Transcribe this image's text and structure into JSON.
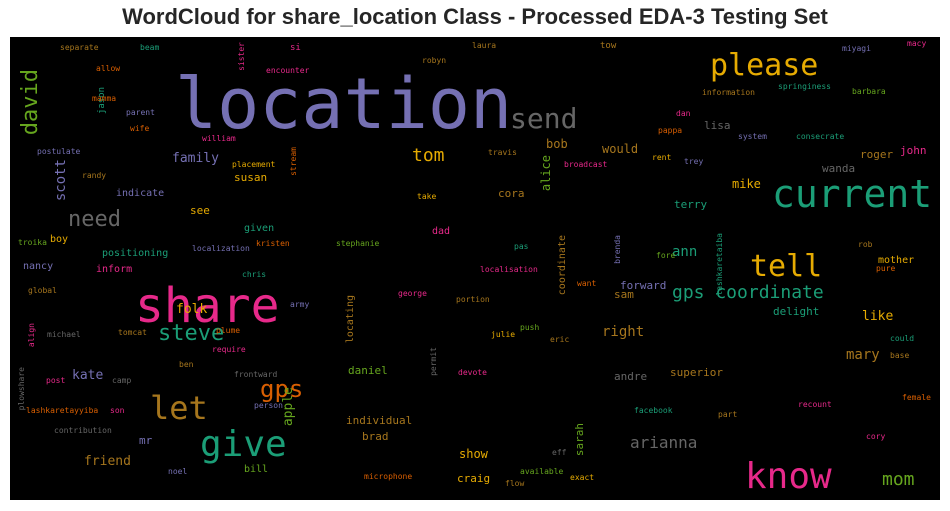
{
  "chart_data": {
    "type": "wordcloud",
    "title": "WordCloud for share_location Class - Processed EDA-3 Testing Set",
    "background": "#000000",
    "words": [
      {
        "text": "location",
        "color": "#7570b3",
        "v": 70
      },
      {
        "text": "share",
        "color": "#e7298a",
        "v": 48
      },
      {
        "text": "current",
        "color": "#1b9e77",
        "v": 38
      },
      {
        "text": "know",
        "color": "#e7298a",
        "v": 36
      },
      {
        "text": "please",
        "color": "#e6ab02",
        "v": 30
      },
      {
        "text": "give",
        "color": "#1b9e77",
        "v": 36
      },
      {
        "text": "let",
        "color": "#a6761d",
        "v": 32
      },
      {
        "text": "tell",
        "color": "#e6ab02",
        "v": 30
      },
      {
        "text": "send",
        "color": "#666666",
        "v": 28
      },
      {
        "text": "david",
        "color": "#66a61e",
        "v": 22,
        "vertical": true
      },
      {
        "text": "need",
        "color": "#666666",
        "v": 22
      },
      {
        "text": "steve",
        "color": "#1b9e77",
        "v": 22
      },
      {
        "text": "gps",
        "color": "#d95f02",
        "v": 24
      },
      {
        "text": "gps coordinate",
        "color": "#1b9e77",
        "v": 18
      },
      {
        "text": "tom",
        "color": "#e6ab02",
        "v": 18
      },
      {
        "text": "mom",
        "color": "#66a61e",
        "v": 18
      },
      {
        "text": "arianna",
        "color": "#666666",
        "v": 16
      },
      {
        "text": "mary",
        "color": "#a6761d",
        "v": 14
      },
      {
        "text": "family",
        "color": "#7570b3",
        "v": 13
      },
      {
        "text": "scott",
        "color": "#7570b3",
        "v": 14,
        "vertical": true
      },
      {
        "text": "apple",
        "color": "#66a61e",
        "v": 13,
        "vertical": true
      },
      {
        "text": "ann",
        "color": "#1b9e77",
        "v": 14
      },
      {
        "text": "right",
        "color": "#a6761d",
        "v": 14
      },
      {
        "text": "kate",
        "color": "#7570b3",
        "v": 13
      },
      {
        "text": "friend",
        "color": "#a6761d",
        "v": 13
      },
      {
        "text": "would",
        "color": "#a6761d",
        "v": 12
      },
      {
        "text": "bob",
        "color": "#a6761d",
        "v": 12
      },
      {
        "text": "folk",
        "color": "#e6ab02",
        "v": 13
      },
      {
        "text": "like",
        "color": "#e6ab02",
        "v": 13
      },
      {
        "text": "show",
        "color": "#e6ab02",
        "v": 12
      },
      {
        "text": "mike",
        "color": "#e6ab02",
        "v": 12
      },
      {
        "text": "alice",
        "color": "#66a61e",
        "v": 12,
        "vertical": true
      },
      {
        "text": "cora",
        "color": "#a6761d",
        "v": 11
      },
      {
        "text": "see",
        "color": "#e6ab02",
        "v": 11
      },
      {
        "text": "susan",
        "color": "#e6ab02",
        "v": 11
      },
      {
        "text": "superior",
        "color": "#a6761d",
        "v": 11
      },
      {
        "text": "forward",
        "color": "#7570b3",
        "v": 11
      },
      {
        "text": "sam",
        "color": "#a6761d",
        "v": 11
      },
      {
        "text": "delight",
        "color": "#1b9e77",
        "v": 11
      },
      {
        "text": "terry",
        "color": "#1b9e77",
        "v": 11
      },
      {
        "text": "lisa",
        "color": "#666666",
        "v": 11
      },
      {
        "text": "roger",
        "color": "#a6761d",
        "v": 11
      },
      {
        "text": "john",
        "color": "#e7298a",
        "v": 11
      },
      {
        "text": "wanda",
        "color": "#666666",
        "v": 11
      },
      {
        "text": "mother",
        "color": "#e6ab02",
        "v": 10
      },
      {
        "text": "sarah",
        "color": "#66a61e",
        "v": 11,
        "vertical": true
      },
      {
        "text": "craig",
        "color": "#e6ab02",
        "v": 11
      },
      {
        "text": "brad",
        "color": "#a6761d",
        "v": 11
      },
      {
        "text": "individual",
        "color": "#a6761d",
        "v": 11
      },
      {
        "text": "daniel",
        "color": "#66a61e",
        "v": 11
      },
      {
        "text": "andre",
        "color": "#666666",
        "v": 11
      },
      {
        "text": "bill",
        "color": "#66a61e",
        "v": 10
      },
      {
        "text": "mr",
        "color": "#7570b3",
        "v": 11
      },
      {
        "text": "boy",
        "color": "#e6ab02",
        "v": 10
      },
      {
        "text": "nancy",
        "color": "#7570b3",
        "v": 10
      },
      {
        "text": "inform",
        "color": "#e7298a",
        "v": 10
      },
      {
        "text": "positioning",
        "color": "#1b9e77",
        "v": 10
      },
      {
        "text": "indicate",
        "color": "#7570b3",
        "v": 10
      },
      {
        "text": "given",
        "color": "#1b9e77",
        "v": 10
      },
      {
        "text": "dad",
        "color": "#e7298a",
        "v": 10
      },
      {
        "text": "coordinate",
        "color": "#a6761d",
        "v": 10,
        "vertical": true
      },
      {
        "text": "locating",
        "color": "#a6761d",
        "v": 10,
        "vertical": true
      },
      {
        "text": "jason",
        "color": "#1b9e77",
        "v": 9,
        "vertical": true
      },
      {
        "text": "tow",
        "color": "#a6761d",
        "v": 9
      },
      {
        "text": "si",
        "color": "#e7298a",
        "v": 9
      },
      {
        "text": "sister",
        "color": "#e7298a",
        "v": 8,
        "vertical": true
      },
      {
        "text": "separate",
        "color": "#a6761d",
        "v": 8
      },
      {
        "text": "beam",
        "color": "#1b9e77",
        "v": 8
      },
      {
        "text": "allow",
        "color": "#d95f02",
        "v": 8
      },
      {
        "text": "laura",
        "color": "#a6761d",
        "v": 8
      },
      {
        "text": "robyn",
        "color": "#a6761d",
        "v": 8
      },
      {
        "text": "encounter",
        "color": "#e7298a",
        "v": 8
      },
      {
        "text": "miyagi",
        "color": "#7570b3",
        "v": 8
      },
      {
        "text": "macy",
        "color": "#e7298a",
        "v": 8
      },
      {
        "text": "mamma",
        "color": "#d95f02",
        "v": 8
      },
      {
        "text": "parent",
        "color": "#7570b3",
        "v": 8
      },
      {
        "text": "wife",
        "color": "#d95f02",
        "v": 8
      },
      {
        "text": "william",
        "color": "#e7298a",
        "v": 8
      },
      {
        "text": "postulate",
        "color": "#7570b3",
        "v": 8
      },
      {
        "text": "randy",
        "color": "#a6761d",
        "v": 8
      },
      {
        "text": "placement",
        "color": "#e6ab02",
        "v": 8
      },
      {
        "text": "stream",
        "color": "#d95f02",
        "v": 8,
        "vertical": true
      },
      {
        "text": "information",
        "color": "#a6761d",
        "v": 8
      },
      {
        "text": "springiness",
        "color": "#1b9e77",
        "v": 8
      },
      {
        "text": "barbara",
        "color": "#66a61e",
        "v": 8
      },
      {
        "text": "dan",
        "color": "#e7298a",
        "v": 8
      },
      {
        "text": "pappa",
        "color": "#d95f02",
        "v": 8
      },
      {
        "text": "system",
        "color": "#7570b3",
        "v": 8
      },
      {
        "text": "consecrate",
        "color": "#1b9e77",
        "v": 8
      },
      {
        "text": "travis",
        "color": "#a6761d",
        "v": 8
      },
      {
        "text": "rent",
        "color": "#e6ab02",
        "v": 8
      },
      {
        "text": "trey",
        "color": "#7570b3",
        "v": 8
      },
      {
        "text": "broadcast",
        "color": "#e7298a",
        "v": 8
      },
      {
        "text": "take",
        "color": "#e6ab02",
        "v": 8
      },
      {
        "text": "troika",
        "color": "#66a61e",
        "v": 8
      },
      {
        "text": "localization",
        "color": "#7570b3",
        "v": 8
      },
      {
        "text": "kristen",
        "color": "#d95f02",
        "v": 8
      },
      {
        "text": "stephanie",
        "color": "#66a61e",
        "v": 8
      },
      {
        "text": "pas",
        "color": "#1b9e77",
        "v": 8
      },
      {
        "text": "brenda",
        "color": "#7570b3",
        "v": 8,
        "vertical": true
      },
      {
        "text": "fore",
        "color": "#66a61e",
        "v": 8
      },
      {
        "text": "lashkaretaiba",
        "color": "#1b9e77",
        "v": 8,
        "vertical": true
      },
      {
        "text": "rob",
        "color": "#a6761d",
        "v": 8
      },
      {
        "text": "global",
        "color": "#a6761d",
        "v": 8
      },
      {
        "text": "chris",
        "color": "#1b9e77",
        "v": 8
      },
      {
        "text": "localisation",
        "color": "#e7298a",
        "v": 8
      },
      {
        "text": "want",
        "color": "#d95f02",
        "v": 8
      },
      {
        "text": "pure",
        "color": "#d95f02",
        "v": 8
      },
      {
        "text": "army",
        "color": "#7570b3",
        "v": 8
      },
      {
        "text": "george",
        "color": "#e7298a",
        "v": 8
      },
      {
        "text": "portion",
        "color": "#a6761d",
        "v": 8
      },
      {
        "text": "eric",
        "color": "#a6761d",
        "v": 8
      },
      {
        "text": "michael",
        "color": "#666666",
        "v": 8
      },
      {
        "text": "tomcat",
        "color": "#a6761d",
        "v": 8
      },
      {
        "text": "plume",
        "color": "#d95f02",
        "v": 8
      },
      {
        "text": "align",
        "color": "#e7298a",
        "v": 8,
        "vertical": true
      },
      {
        "text": "require",
        "color": "#e7298a",
        "v": 8
      },
      {
        "text": "push",
        "color": "#66a61e",
        "v": 8
      },
      {
        "text": "julie",
        "color": "#e6ab02",
        "v": 8
      },
      {
        "text": "could",
        "color": "#1b9e77",
        "v": 8
      },
      {
        "text": "base",
        "color": "#a6761d",
        "v": 8
      },
      {
        "text": "plowshare",
        "color": "#666666",
        "v": 8,
        "vertical": true
      },
      {
        "text": "post",
        "color": "#e7298a",
        "v": 8
      },
      {
        "text": "camp",
        "color": "#666666",
        "v": 8
      },
      {
        "text": "ben",
        "color": "#a6761d",
        "v": 8
      },
      {
        "text": "permit",
        "color": "#666666",
        "v": 8,
        "vertical": true
      },
      {
        "text": "devote",
        "color": "#e7298a",
        "v": 8
      },
      {
        "text": "frontward",
        "color": "#666666",
        "v": 8
      },
      {
        "text": "person",
        "color": "#7570b3",
        "v": 8
      },
      {
        "text": "lashkaretayyiba",
        "color": "#d95f02",
        "v": 8
      },
      {
        "text": "son",
        "color": "#e7298a",
        "v": 8
      },
      {
        "text": "facebook",
        "color": "#1b9e77",
        "v": 8
      },
      {
        "text": "female",
        "color": "#d95f02",
        "v": 8
      },
      {
        "text": "recount",
        "color": "#e7298a",
        "v": 8
      },
      {
        "text": "part",
        "color": "#a6761d",
        "v": 8
      },
      {
        "text": "contribution",
        "color": "#666666",
        "v": 8
      },
      {
        "text": "cory",
        "color": "#e7298a",
        "v": 8
      },
      {
        "text": "noel",
        "color": "#7570b3",
        "v": 8
      },
      {
        "text": "eff",
        "color": "#666666",
        "v": 8
      },
      {
        "text": "available",
        "color": "#66a61e",
        "v": 8
      },
      {
        "text": "microphone",
        "color": "#d95f02",
        "v": 8
      },
      {
        "text": "flow",
        "color": "#a6761d",
        "v": 8
      },
      {
        "text": "exact",
        "color": "#e6ab02",
        "v": 8
      }
    ]
  }
}
